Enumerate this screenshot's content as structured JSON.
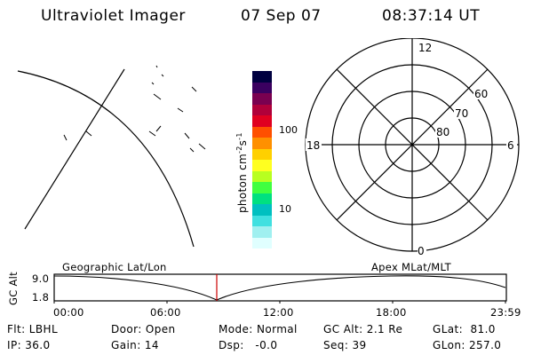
{
  "header": {
    "title": "Ultraviolet Imager",
    "date": "07 Sep 07",
    "time": "08:37:14 UT"
  },
  "colorbar": {
    "label": "photon cm⁻²s⁻¹",
    "label_main": "photon cm",
    "exp1": "-2",
    "mid": "s",
    "exp2": "-1",
    "ticks": [
      "100",
      "10"
    ],
    "colors": [
      "#000040",
      "#3a0060",
      "#7a0050",
      "#b0003a",
      "#e00020",
      "#ff5000",
      "#ff9000",
      "#ffd000",
      "#ffff20",
      "#b8ff20",
      "#40ff40",
      "#00e080",
      "#00c0c0",
      "#40e0e0",
      "#a0f0f0",
      "#e0ffff"
    ]
  },
  "polar_plot": {
    "top_label": "12",
    "bottom_label": "0",
    "left_label": "18",
    "right_label": "6",
    "ring_labels": [
      "60",
      "70",
      "80"
    ]
  },
  "timeline": {
    "ylabel": "GC Alt",
    "y_ticks": [
      "9.0",
      "1.8"
    ],
    "left_title": "Geographic Lat/Lon",
    "right_title": "Apex MLat/MLT",
    "x_ticks": [
      "00:00",
      "06:00",
      "12:00",
      "18:00",
      "23:59"
    ],
    "marker_time": "08:37"
  },
  "status": {
    "filter": "Flt: LBHL",
    "ip": "IP: 36.0",
    "door": "Door: Open",
    "gain": "Gain: 14",
    "mode": "Mode: Normal",
    "dsp": "Dsp:   -0.0",
    "gc_alt": "GC Alt: 2.1 Re",
    "seq": "Seq: 39",
    "glat": "GLat:  81.0",
    "glon": "GLon: 257.0"
  }
}
